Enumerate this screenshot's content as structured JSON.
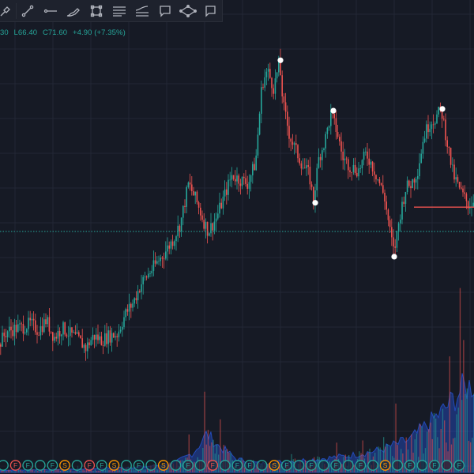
{
  "toolbar": {
    "tools": [
      {
        "name": "brush-icon"
      },
      {
        "name": "path-icon"
      },
      {
        "name": "horizontal-line-icon"
      },
      {
        "name": "pencil-icon"
      },
      {
        "name": "rectangle-icon"
      },
      {
        "name": "text-lines-icon"
      },
      {
        "name": "curve-lines-icon"
      },
      {
        "name": "callout-icon"
      },
      {
        "name": "ellipse-icon"
      },
      {
        "name": "comment-icon"
      }
    ]
  },
  "legend": {
    "open_fragment": "30",
    "low": "L66.40",
    "close": "C71.60",
    "change": "+4.90 (+7.35%)"
  },
  "colors": {
    "background": "#161a25",
    "up": "#26a69a",
    "down": "#ef5350",
    "volume_area": "#2962ff",
    "price_line": "#26a69a",
    "support_line": "#ef5350",
    "marker": "#ffffff"
  },
  "chart_data": {
    "type": "candlestick",
    "price_anchors": [
      [
        0,
        49
      ],
      [
        10,
        50.5
      ],
      [
        20,
        50.8
      ],
      [
        30,
        51.0
      ],
      [
        40,
        51.4
      ],
      [
        50,
        50.6
      ],
      [
        60,
        51.8
      ],
      [
        70,
        49.8
      ],
      [
        80,
        50.9
      ],
      [
        90,
        50.2
      ],
      [
        100,
        49.6
      ],
      [
        110,
        48.6
      ],
      [
        120,
        50.0
      ],
      [
        130,
        49.5
      ],
      [
        140,
        50.0
      ],
      [
        150,
        50.2
      ],
      [
        160,
        52.5
      ],
      [
        170,
        53.8
      ],
      [
        180,
        56.0
      ],
      [
        190,
        57.2
      ],
      [
        200,
        58.4
      ],
      [
        210,
        59.6
      ],
      [
        220,
        61.0
      ],
      [
        230,
        63.0
      ],
      [
        240,
        67.5
      ],
      [
        250,
        65.5
      ],
      [
        260,
        63.0
      ],
      [
        265,
        62.0
      ],
      [
        275,
        63.5
      ],
      [
        285,
        66.0
      ],
      [
        295,
        68.5
      ],
      [
        305,
        68.0
      ],
      [
        315,
        67.5
      ],
      [
        325,
        70.0
      ],
      [
        333,
        79.0
      ],
      [
        340,
        80.5
      ],
      [
        348,
        78.5
      ],
      [
        355,
        81.5
      ],
      [
        360,
        76.5
      ],
      [
        368,
        73.0
      ],
      [
        375,
        71.5
      ],
      [
        385,
        69.5
      ],
      [
        393,
        68.5
      ],
      [
        398,
        65.5
      ],
      [
        405,
        70.5
      ],
      [
        413,
        72.5
      ],
      [
        420,
        75.5
      ],
      [
        428,
        73.5
      ],
      [
        435,
        70.5
      ],
      [
        445,
        69.5
      ],
      [
        455,
        69.0
      ],
      [
        465,
        71.0
      ],
      [
        473,
        69.5
      ],
      [
        480,
        68.0
      ],
      [
        488,
        66.0
      ],
      [
        495,
        62.0
      ],
      [
        500,
        59.5
      ],
      [
        508,
        64.0
      ],
      [
        515,
        67.0
      ],
      [
        522,
        67.5
      ],
      [
        530,
        69.0
      ],
      [
        538,
        73.0
      ],
      [
        545,
        74.5
      ],
      [
        552,
        75.0
      ],
      [
        560,
        76.0
      ],
      [
        568,
        72.0
      ],
      [
        575,
        68.5
      ],
      [
        585,
        66.5
      ],
      [
        595,
        65.0
      ],
      [
        600,
        65.5
      ]
    ],
    "swing_points": [
      {
        "x": 355,
        "price": 81.7
      },
      {
        "x": 422,
        "price": 75.9
      },
      {
        "x": 399,
        "price": 65.3
      },
      {
        "x": 499,
        "price": 59.1
      },
      {
        "x": 560,
        "price": 76.1
      }
    ],
    "support_level": 64.8,
    "support_from_x": 524,
    "reference_level": 62.0,
    "volume_area_anchors": [
      [
        0,
        0.02
      ],
      [
        100,
        0.03
      ],
      [
        180,
        0.05
      ],
      [
        220,
        0.08
      ],
      [
        245,
        0.18
      ],
      [
        262,
        0.35
      ],
      [
        275,
        0.25
      ],
      [
        300,
        0.12
      ],
      [
        330,
        0.08
      ],
      [
        360,
        0.1
      ],
      [
        400,
        0.12
      ],
      [
        440,
        0.15
      ],
      [
        480,
        0.2
      ],
      [
        520,
        0.3
      ],
      [
        560,
        0.55
      ],
      [
        585,
        0.75
      ],
      [
        600,
        0.8
      ]
    ],
    "price_range": [
      45,
      85
    ]
  },
  "day_markers": [
    {
      "letter": "",
      "color": "#26a69a"
    },
    {
      "letter": "F",
      "color": "#ef5350"
    },
    {
      "letter": "F",
      "color": "#26a69a"
    },
    {
      "letter": "",
      "color": "#26a69a"
    },
    {
      "letter": "F",
      "color": "#26a69a"
    },
    {
      "letter": "S",
      "color": "#ff9800"
    },
    {
      "letter": "",
      "color": "#26a69a"
    },
    {
      "letter": "F",
      "color": "#ef5350"
    },
    {
      "letter": "F",
      "color": "#26a69a"
    },
    {
      "letter": "S",
      "color": "#ff9800"
    },
    {
      "letter": "",
      "color": "#26a69a"
    },
    {
      "letter": "F",
      "color": "#26a69a"
    },
    {
      "letter": "",
      "color": "#26a69a"
    },
    {
      "letter": "S",
      "color": "#ff9800"
    },
    {
      "letter": "",
      "color": "#26a69a"
    },
    {
      "letter": "F",
      "color": "#26a69a"
    },
    {
      "letter": "",
      "color": "#26a69a"
    },
    {
      "letter": "F",
      "color": "#ef5350"
    },
    {
      "letter": "",
      "color": "#26a69a"
    },
    {
      "letter": "F",
      "color": "#26a69a"
    },
    {
      "letter": "F",
      "color": "#26a69a"
    },
    {
      "letter": "",
      "color": "#26a69a"
    },
    {
      "letter": "S",
      "color": "#ff9800"
    },
    {
      "letter": "F",
      "color": "#26a69a"
    },
    {
      "letter": "",
      "color": "#26a69a"
    },
    {
      "letter": "F",
      "color": "#26a69a"
    },
    {
      "letter": "",
      "color": "#26a69a"
    },
    {
      "letter": "F",
      "color": "#26a69a"
    },
    {
      "letter": "",
      "color": "#26a69a"
    },
    {
      "letter": "F",
      "color": "#26a69a"
    },
    {
      "letter": "",
      "color": "#26a69a"
    },
    {
      "letter": "S",
      "color": "#ff9800"
    },
    {
      "letter": "",
      "color": "#26a69a"
    },
    {
      "letter": "F",
      "color": "#26a69a"
    },
    {
      "letter": "",
      "color": "#26a69a"
    },
    {
      "letter": "F",
      "color": "#26a69a"
    },
    {
      "letter": "",
      "color": "#26a69a"
    },
    {
      "letter": "F",
      "color": "#26a69a"
    }
  ]
}
